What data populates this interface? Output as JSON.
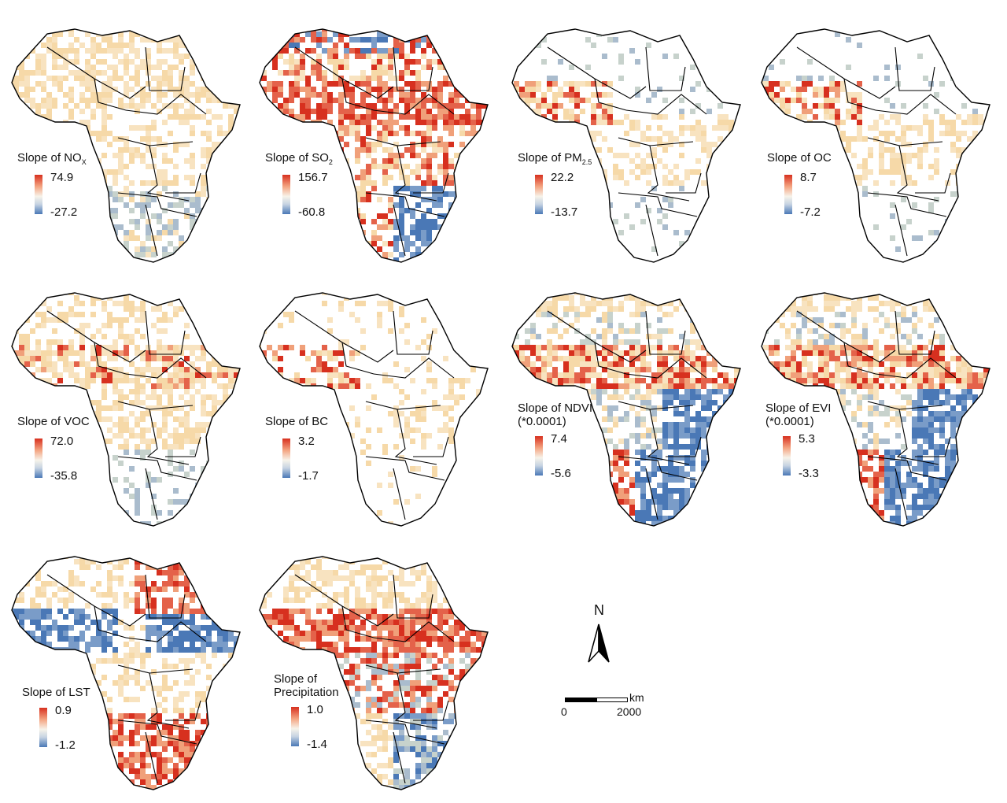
{
  "panels": [
    {
      "id": "nox",
      "title_main": "Slope of NO",
      "title_sub": "X",
      "title_line2": "",
      "max": "74.9",
      "min": "-27.2",
      "seed": 11,
      "pattern": "nox"
    },
    {
      "id": "so2",
      "title_main": "Slope of SO",
      "title_sub": "2",
      "title_line2": "",
      "max": "156.7",
      "min": "-60.8",
      "seed": 23,
      "pattern": "so2"
    },
    {
      "id": "pm25",
      "title_main": "Slope of PM",
      "title_sub": "2.5",
      "title_line2": "",
      "max": "22.2",
      "min": "-13.7",
      "seed": 37,
      "pattern": "pm"
    },
    {
      "id": "oc",
      "title_main": "Slope of OC",
      "title_sub": "",
      "title_line2": "",
      "max": "8.7",
      "min": "-7.2",
      "seed": 41,
      "pattern": "pm"
    },
    {
      "id": "voc",
      "title_main": "Slope of VOC",
      "title_sub": "",
      "title_line2": "",
      "max": "72.0",
      "min": "-35.8",
      "seed": 53,
      "pattern": "voc"
    },
    {
      "id": "bc",
      "title_main": "Slope of BC",
      "title_sub": "",
      "title_line2": "",
      "max": "3.2",
      "min": "-1.7",
      "seed": 67,
      "pattern": "bc"
    },
    {
      "id": "ndvi",
      "title_main": "Slope of NDVI",
      "title_sub": "",
      "title_line2": "(*0.0001)",
      "max": "7.4",
      "min": "-5.6",
      "seed": 71,
      "pattern": "ndvi"
    },
    {
      "id": "evi",
      "title_main": "Slope of EVI",
      "title_sub": "",
      "title_line2": "(*0.0001)",
      "max": "5.3",
      "min": "-3.3",
      "seed": 83,
      "pattern": "ndvi"
    },
    {
      "id": "lst",
      "title_main": "Slope of LST",
      "title_sub": "",
      "title_line2": "",
      "max": "0.9",
      "min": "-1.2",
      "seed": 97,
      "pattern": "lst"
    },
    {
      "id": "precip",
      "title_main": "Slope of",
      "title_sub": "",
      "title_line2": "Precipitation",
      "max": "1.0",
      "min": "-1.4",
      "seed": 101,
      "pattern": "precip"
    }
  ],
  "north_arrow": {
    "label": "N"
  },
  "scale_bar": {
    "unit": "km",
    "start": "0",
    "end": "2000"
  },
  "colors": {
    "positive": "#d7301f",
    "light_positive": "#f6d9a8",
    "neutral": "#f7f3ea",
    "light_negative": "#c7d2cc",
    "negative": "#4a78b6",
    "border": "#000000"
  }
}
